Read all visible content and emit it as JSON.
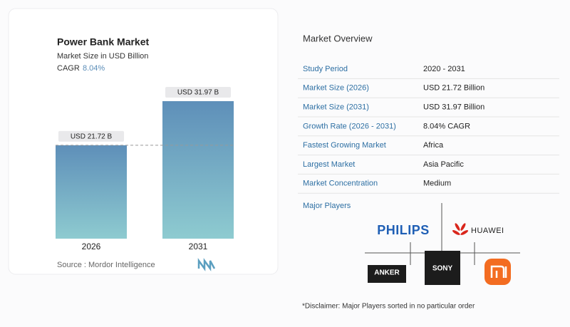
{
  "chart_data": {
    "type": "bar",
    "title": "Power Bank Market",
    "subtitle": "Market Size in USD Billion",
    "cagr_label": "CAGR",
    "cagr_value": "8.04%",
    "categories": [
      "2026",
      "2031"
    ],
    "values": [
      21.72,
      31.97
    ],
    "value_labels": [
      "USD 21.72 B",
      "USD 31.97 B"
    ],
    "source": "Source :  Mordor Intelligence"
  },
  "overview": {
    "title": "Market Overview",
    "rows": [
      [
        "Study Period",
        "2020 - 2031"
      ],
      [
        "Market Size (2026)",
        "USD 21.72 Billion"
      ],
      [
        "Market Size (2031)",
        "USD 31.97 Billion"
      ],
      [
        "Growth Rate (2026 - 2031)",
        "8.04% CAGR"
      ],
      [
        "Fastest Growing Market",
        "Africa"
      ],
      [
        "Largest Market",
        "Asia Pacific"
      ],
      [
        "Market Concentration",
        "Medium"
      ]
    ],
    "players_title": "Major Players",
    "players": [
      "PHILIPS",
      "HUAWEI",
      "ANKER",
      "SONY"
    ],
    "disclaimer": "*Disclaimer: Major Players sorted in no particular order"
  }
}
